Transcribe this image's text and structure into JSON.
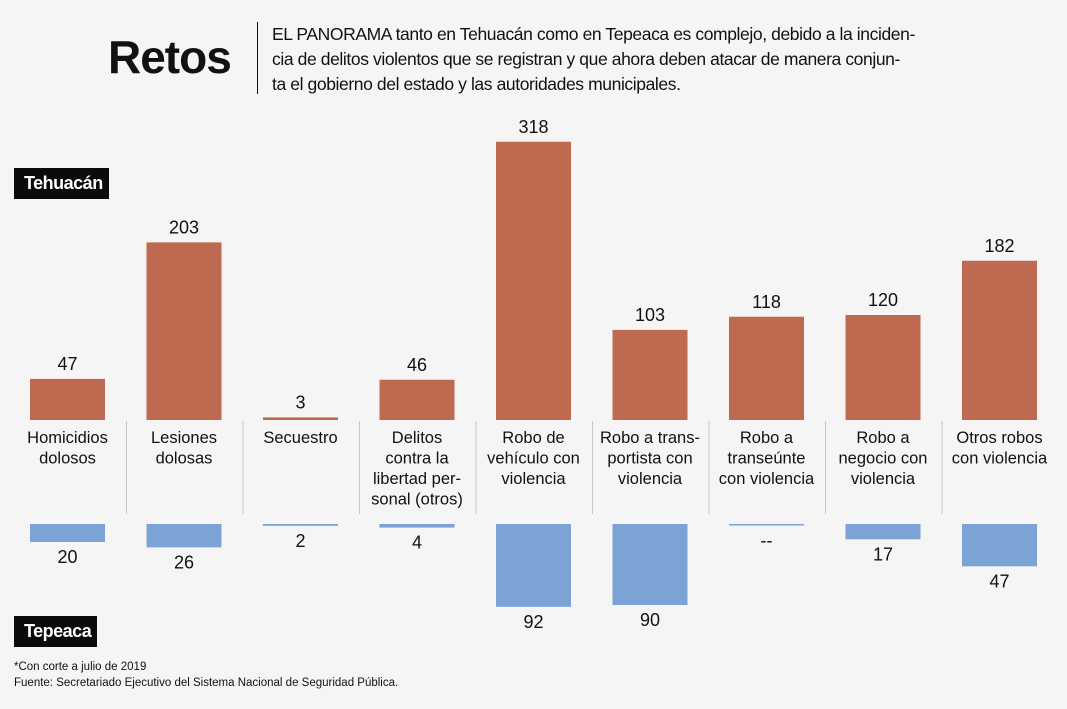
{
  "title": "Retos",
  "intro_lines": [
    "EL PANORAMA tanto en Tehuacán como en Tepeaca es complejo, debido a la inciden-",
    "cia de delitos violentos que se registran y que ahora deben atacar de manera conjun-",
    "ta el gobierno del estado y las autoridades municipales."
  ],
  "badge_top": "Tehuacán",
  "badge_bottom": "Tepeaca",
  "note": "*Con corte a julio de 2019",
  "source": "Fuente: Secretariado Ejecutivo del Sistema Nacional de Seguridad Pública.",
  "colors": {
    "tehuacan": "#bd6a51",
    "tepeaca": "#7ba3d6"
  },
  "chart_data": {
    "type": "bar",
    "layout": "mirrored",
    "categories": [
      [
        "Homicidios",
        "dolosos"
      ],
      [
        "Lesiones",
        "dolosas"
      ],
      [
        "Secuestro"
      ],
      [
        "Delitos",
        "contra la",
        "libertad per-",
        "sonal (otros)"
      ],
      [
        "Robo de",
        "vehículo con",
        "violencia"
      ],
      [
        "Robo a trans-",
        "portista con",
        "violencia"
      ],
      [
        "Robo a",
        "transeúnte",
        "con violencia"
      ],
      [
        "Robo a",
        "negocio con",
        "violencia"
      ],
      [
        "Otros robos",
        "con violencia"
      ]
    ],
    "series": [
      {
        "name": "Tehuacán",
        "values": [
          47,
          203,
          3,
          46,
          318,
          103,
          118,
          120,
          182
        ],
        "labels": [
          "47",
          "203",
          "3",
          "46",
          "318",
          "103",
          "118",
          "120",
          "182"
        ]
      },
      {
        "name": "Tepeaca",
        "values": [
          20,
          26,
          2,
          4,
          92,
          90,
          0,
          17,
          47
        ],
        "labels": [
          "20",
          "26",
          "2",
          "4",
          "92",
          "90",
          "--",
          "17",
          "47"
        ]
      }
    ]
  }
}
